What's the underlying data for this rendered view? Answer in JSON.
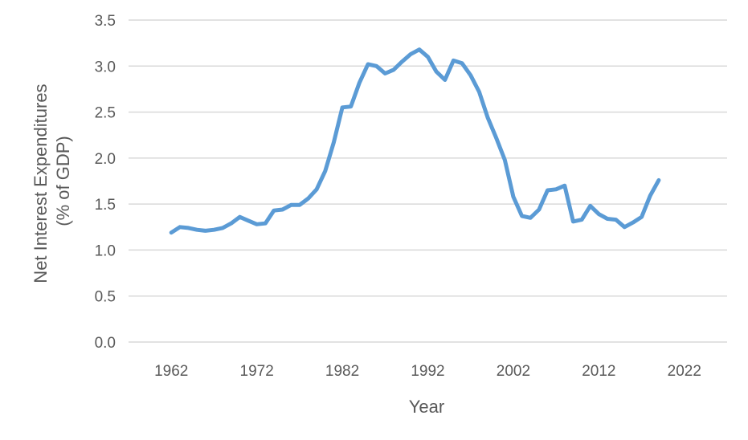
{
  "chart_data": {
    "type": "line",
    "title": "",
    "xlabel": "Year",
    "ylabel_lines": [
      "Net Interest Expenditures",
      "(% of GDP)"
    ],
    "xlim": [
      1957,
      2027
    ],
    "ylim": [
      0,
      3.5
    ],
    "x_ticks": [
      1962,
      1972,
      1982,
      1992,
      2002,
      2012,
      2022
    ],
    "x_tick_labels": [
      "1962",
      "1972",
      "1982",
      "1992",
      "2002",
      "2012",
      "2022"
    ],
    "y_ticks": [
      0,
      0.5,
      1,
      1.5,
      2,
      2.5,
      3,
      3.5
    ],
    "y_tick_labels": [
      "0.0",
      "0.5",
      "1.0",
      "1.5",
      "2.0",
      "2.5",
      "3.0",
      "3.5"
    ],
    "grid": true,
    "legend": "none",
    "line_color": "#5b9bd5",
    "series": [
      {
        "x": [
          1962,
          1963,
          1964,
          1965,
          1966,
          1967,
          1968,
          1969,
          1970,
          1971,
          1972,
          1973,
          1974,
          1975,
          1976,
          1977,
          1978,
          1979,
          1980,
          1981,
          1982,
          1983,
          1984,
          1985,
          1986,
          1987,
          1988,
          1989,
          1990,
          1991,
          1992,
          1993,
          1994,
          1995,
          1996,
          1997,
          1998,
          1999,
          2000,
          2001,
          2002,
          2003,
          2004,
          2005,
          2006,
          2007,
          2008,
          2009,
          2010,
          2011,
          2012,
          2013,
          2014,
          2015,
          2016,
          2017,
          2018,
          2019
        ],
        "values": [
          1.19,
          1.25,
          1.24,
          1.22,
          1.21,
          1.22,
          1.24,
          1.29,
          1.36,
          1.32,
          1.28,
          1.29,
          1.43,
          1.44,
          1.49,
          1.49,
          1.56,
          1.66,
          1.86,
          2.17,
          2.55,
          2.56,
          2.82,
          3.02,
          3.0,
          2.92,
          2.96,
          3.05,
          3.13,
          3.18,
          3.1,
          2.94,
          2.85,
          3.06,
          3.03,
          2.9,
          2.72,
          2.44,
          2.22,
          1.98,
          1.58,
          1.37,
          1.35,
          1.44,
          1.65,
          1.66,
          1.7,
          1.31,
          1.33,
          1.48,
          1.39,
          1.34,
          1.33,
          1.25,
          1.3,
          1.36,
          1.59,
          1.76
        ]
      }
    ]
  }
}
